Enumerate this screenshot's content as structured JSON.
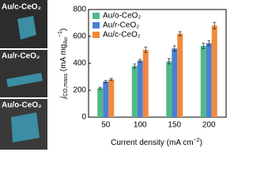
{
  "panels": [
    {
      "label": "Au/c-CeO₂"
    },
    {
      "label": "Au/r-CeO₂"
    },
    {
      "label": "Au/o-CeO₂"
    }
  ],
  "chart_data": {
    "type": "bar",
    "ylabel": [
      "j",
      "CO,mass",
      " (mA mg",
      "Au",
      "−1",
      ")"
    ],
    "xlabel": [
      "Current density (mA cm",
      "−2",
      ")"
    ],
    "categories": [
      "50",
      "100",
      "150",
      "200"
    ],
    "series": [
      {
        "name": "Au/o-CeO₂",
        "color": "#4dbb85",
        "values": [
          215,
          380,
          415,
          530
        ],
        "errors": [
          8,
          15,
          20,
          20
        ]
      },
      {
        "name": "Au/r-CeO₂",
        "color": "#4a7fd4",
        "values": [
          265,
          420,
          510,
          550
        ],
        "errors": [
          8,
          10,
          20,
          20
        ]
      },
      {
        "name": "Au/c-CeO₂",
        "color": "#f08a3c",
        "values": [
          280,
          500,
          620,
          680
        ],
        "errors": [
          8,
          20,
          15,
          25
        ]
      }
    ],
    "ylim": [
      0,
      800
    ],
    "yticks": [
      0,
      200,
      400,
      600,
      800
    ]
  }
}
